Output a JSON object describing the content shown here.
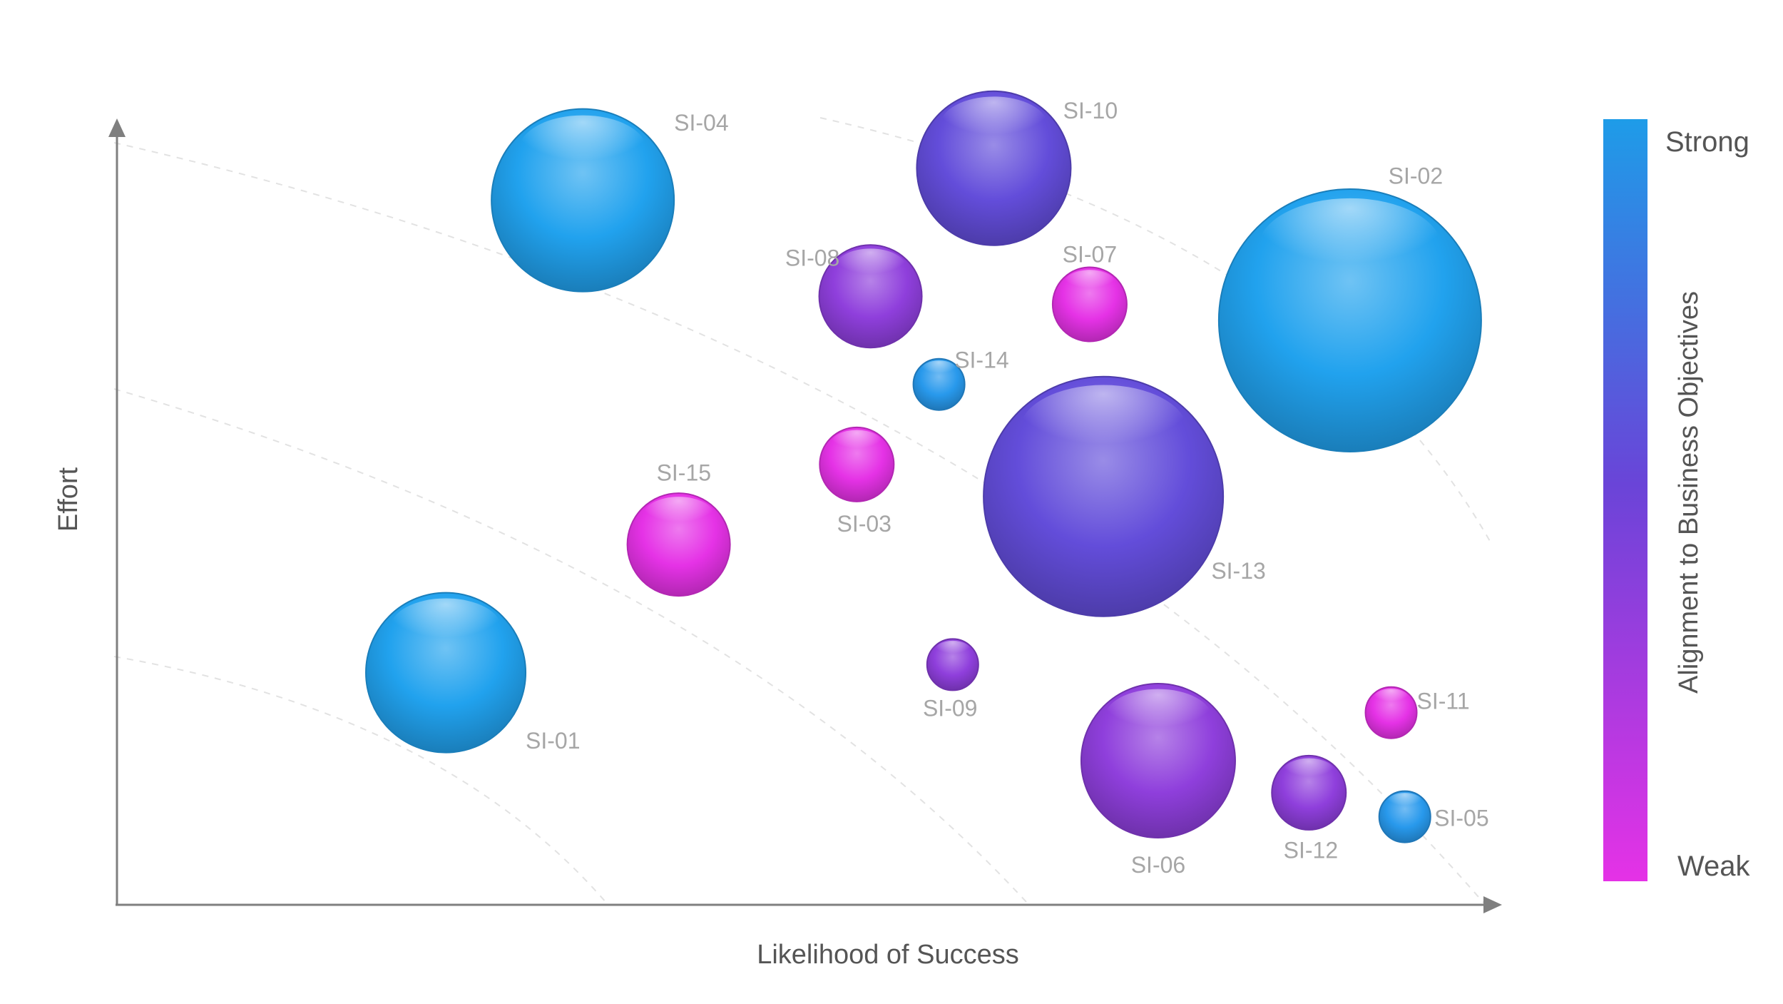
{
  "chart_data": {
    "type": "scatter",
    "title": "",
    "xlabel": "Likelihood of Success",
    "ylabel": "Effort",
    "xlim": [
      0,
      100
    ],
    "ylim": [
      0,
      100
    ],
    "grid": false,
    "points": [
      {
        "label": "SI-01",
        "x": 24,
        "y": 29,
        "size": 14,
        "alignment": 1.0
      },
      {
        "label": "SI-02",
        "x": 90,
        "y": 73,
        "size": 23,
        "alignment": 1.0
      },
      {
        "label": "SI-03",
        "x": 54,
        "y": 55,
        "size": 6.5,
        "alignment": 0.0
      },
      {
        "label": "SI-04",
        "x": 34,
        "y": 88,
        "size": 16,
        "alignment": 1.0
      },
      {
        "label": "SI-05",
        "x": 94,
        "y": 11,
        "size": 4.5,
        "alignment": 0.95
      },
      {
        "label": "SI-06",
        "x": 76,
        "y": 18,
        "size": 13.5,
        "alignment": 0.35
      },
      {
        "label": "SI-07",
        "x": 71,
        "y": 75,
        "size": 6.5,
        "alignment": 0.0
      },
      {
        "label": "SI-08",
        "x": 55,
        "y": 76,
        "size": 9,
        "alignment": 0.35
      },
      {
        "label": "SI-09",
        "x": 61,
        "y": 30,
        "size": 4.5,
        "alignment": 0.35
      },
      {
        "label": "SI-10",
        "x": 64,
        "y": 92,
        "size": 13.5,
        "alignment": 0.55
      },
      {
        "label": "SI-11",
        "x": 93,
        "y": 24,
        "size": 4.5,
        "alignment": 0.0
      },
      {
        "label": "SI-12",
        "x": 87,
        "y": 14,
        "size": 6.5,
        "alignment": 0.35
      },
      {
        "label": "SI-13",
        "x": 72,
        "y": 51,
        "size": 21,
        "alignment": 0.55
      },
      {
        "label": "SI-14",
        "x": 60,
        "y": 65,
        "size": 4.5,
        "alignment": 0.95
      },
      {
        "label": "SI-15",
        "x": 41,
        "y": 45,
        "size": 9,
        "alignment": 0.0
      }
    ],
    "legend": {
      "title": "Alignment to Business Objectives",
      "high_label": "Strong",
      "low_label": "Weak",
      "placement": "right",
      "colors": {
        "strong": "#21a2ee",
        "mid": "#6a44d8",
        "weak": "#e532e6"
      }
    }
  }
}
